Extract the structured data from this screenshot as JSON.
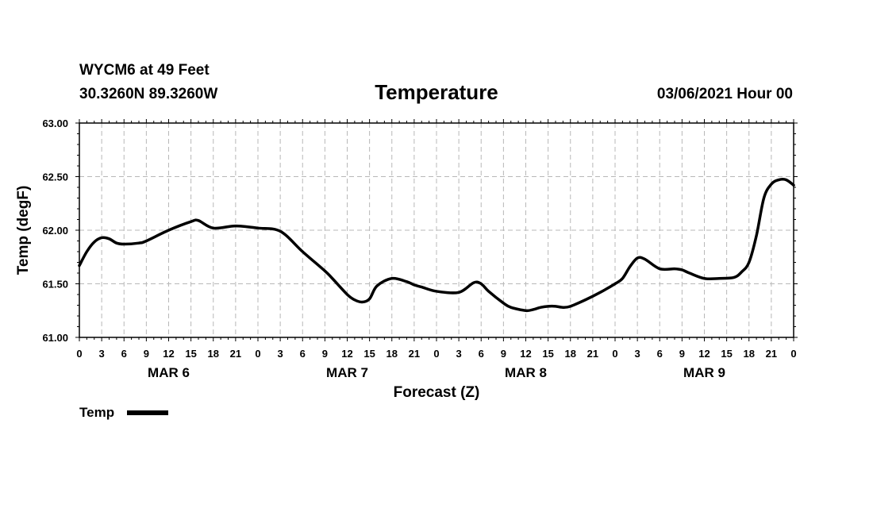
{
  "header": {
    "station": "WYCM6 at 49 Feet",
    "location": "30.3260N 89.3260W",
    "title": "Temperature",
    "datetime": "03/06/2021 Hour 00"
  },
  "chart_data": {
    "type": "line",
    "title": "Temperature",
    "xlabel": "Forecast (Z)",
    "ylabel": "Temp (degF)",
    "ylim": [
      61.0,
      63.0
    ],
    "yticks": [
      61.0,
      61.5,
      62.0,
      62.5,
      63.0
    ],
    "ytick_labels": [
      "61.00",
      "61.50",
      "62.00",
      "62.50",
      "63.00"
    ],
    "xlim_hours": [
      0,
      96
    ],
    "xtick_hours": [
      0,
      3,
      6,
      9,
      12,
      15,
      18,
      21,
      24,
      27,
      30,
      33,
      36,
      39,
      42,
      45,
      48,
      51,
      54,
      57,
      60,
      63,
      66,
      69,
      72,
      75,
      78,
      81,
      84,
      87,
      90,
      93,
      96
    ],
    "xtick_labels": [
      "0",
      "3",
      "6",
      "9",
      "12",
      "15",
      "18",
      "21",
      "0",
      "3",
      "6",
      "9",
      "12",
      "15",
      "18",
      "21",
      "0",
      "3",
      "6",
      "9",
      "12",
      "15",
      "18",
      "21",
      "0",
      "3",
      "6",
      "9",
      "12",
      "15",
      "18",
      "21",
      "0"
    ],
    "day_labels": [
      {
        "label": "MAR 6",
        "hour": 12
      },
      {
        "label": "MAR 7",
        "hour": 36
      },
      {
        "label": "MAR 8",
        "hour": 60
      },
      {
        "label": "MAR 9",
        "hour": 84
      }
    ],
    "grid": true,
    "legend": {
      "position": "bottom-left",
      "entries": [
        {
          "name": "Temp",
          "color": "#000000"
        }
      ]
    },
    "series": [
      {
        "name": "Temp",
        "color": "#000000",
        "x": [
          0,
          1,
          2,
          3,
          4,
          5,
          6,
          8,
          9,
          12,
          15,
          16,
          18,
          21,
          24,
          27,
          30,
          33,
          34,
          36,
          37,
          38,
          39,
          40,
          42,
          44,
          45,
          46,
          48,
          51,
          53,
          54,
          55,
          57,
          58,
          60,
          61,
          62,
          63,
          64,
          65,
          66,
          68,
          70,
          72,
          73,
          74,
          75,
          76,
          78,
          80,
          81,
          82,
          84,
          86,
          88,
          89,
          90,
          91,
          92,
          93,
          94,
          95,
          96
        ],
        "values": [
          61.67,
          61.8,
          61.89,
          61.93,
          61.92,
          61.88,
          61.87,
          61.88,
          61.9,
          62.0,
          62.08,
          62.09,
          62.02,
          62.04,
          62.02,
          61.99,
          61.8,
          61.62,
          61.55,
          61.4,
          61.35,
          61.33,
          61.36,
          61.48,
          61.55,
          61.52,
          61.49,
          61.47,
          61.43,
          61.42,
          61.51,
          61.5,
          61.43,
          61.32,
          61.28,
          61.25,
          61.26,
          61.28,
          61.29,
          61.29,
          61.28,
          61.29,
          61.35,
          61.42,
          61.5,
          61.55,
          61.66,
          61.74,
          61.73,
          61.64,
          61.64,
          61.63,
          61.6,
          61.55,
          61.55,
          61.56,
          61.61,
          61.7,
          61.95,
          62.3,
          62.43,
          62.47,
          62.47,
          62.42
        ]
      }
    ]
  }
}
